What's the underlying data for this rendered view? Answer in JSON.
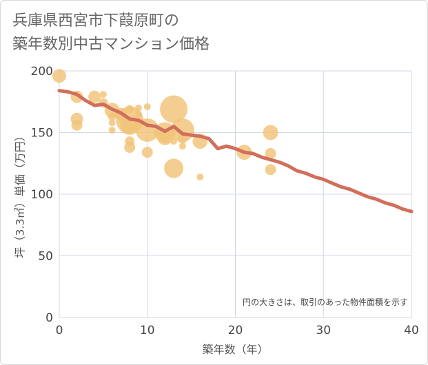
{
  "title_lines": [
    "兵庫県西宮市下葭原町の",
    "築年数別中古マンション価格"
  ],
  "chart_data": {
    "type": "scatter",
    "title": "兵庫県西宮市下葭原町の築年数別中古マンション価格",
    "xlabel": "築年数（年）",
    "ylabel": "坪（3.3㎡）単価（万円）",
    "xlim": [
      0,
      40
    ],
    "ylim": [
      0,
      200
    ],
    "x_ticks": [
      0,
      10,
      20,
      30,
      40
    ],
    "y_ticks": [
      0,
      50,
      100,
      150,
      200
    ],
    "grid": true,
    "note": "円の大きさは、取引のあった物件面積を示す",
    "colors": {
      "bubble": "#f2c377",
      "trend": "#d26e5c",
      "grid": "#d0d8e4"
    },
    "bubbles": [
      {
        "x": 0,
        "y": 196,
        "size": 10
      },
      {
        "x": 2,
        "y": 179,
        "size": 9
      },
      {
        "x": 2,
        "y": 161,
        "size": 9
      },
      {
        "x": 2,
        "y": 156,
        "size": 8
      },
      {
        "x": 4,
        "y": 179,
        "size": 9
      },
      {
        "x": 5,
        "y": 181,
        "size": 5
      },
      {
        "x": 5,
        "y": 174,
        "size": 7
      },
      {
        "x": 6,
        "y": 168,
        "size": 11
      },
      {
        "x": 6,
        "y": 163,
        "size": 6
      },
      {
        "x": 6,
        "y": 158,
        "size": 5
      },
      {
        "x": 6,
        "y": 152,
        "size": 5
      },
      {
        "x": 7,
        "y": 165,
        "size": 9
      },
      {
        "x": 8,
        "y": 169,
        "size": 6
      },
      {
        "x": 8,
        "y": 160,
        "size": 20
      },
      {
        "x": 8,
        "y": 156,
        "size": 14
      },
      {
        "x": 8,
        "y": 143,
        "size": 7
      },
      {
        "x": 8,
        "y": 138,
        "size": 8
      },
      {
        "x": 9,
        "y": 170,
        "size": 5
      },
      {
        "x": 9,
        "y": 165,
        "size": 5
      },
      {
        "x": 9,
        "y": 158,
        "size": 5
      },
      {
        "x": 10,
        "y": 171,
        "size": 5
      },
      {
        "x": 10,
        "y": 152,
        "size": 17
      },
      {
        "x": 10,
        "y": 134,
        "size": 8
      },
      {
        "x": 12,
        "y": 150,
        "size": 15
      },
      {
        "x": 12,
        "y": 146,
        "size": 11
      },
      {
        "x": 13,
        "y": 169,
        "size": 20
      },
      {
        "x": 13,
        "y": 143,
        "size": 5
      },
      {
        "x": 13,
        "y": 121,
        "size": 14
      },
      {
        "x": 14,
        "y": 152,
        "size": 17
      },
      {
        "x": 14,
        "y": 145,
        "size": 7
      },
      {
        "x": 14,
        "y": 139,
        "size": 5
      },
      {
        "x": 16,
        "y": 143,
        "size": 11
      },
      {
        "x": 16,
        "y": 114,
        "size": 5
      },
      {
        "x": 21,
        "y": 134,
        "size": 11
      },
      {
        "x": 24,
        "y": 150,
        "size": 11
      },
      {
        "x": 24,
        "y": 133,
        "size": 8
      },
      {
        "x": 24,
        "y": 120,
        "size": 8
      }
    ],
    "series": [
      {
        "values": [
          [
            0,
            184
          ],
          [
            1,
            183
          ],
          [
            2,
            181
          ],
          [
            3,
            176
          ],
          [
            4,
            172
          ],
          [
            5,
            173
          ],
          [
            6,
            169
          ],
          [
            7,
            166
          ],
          [
            8,
            161
          ],
          [
            9,
            160
          ],
          [
            10,
            156
          ],
          [
            11,
            155
          ],
          [
            12,
            151
          ],
          [
            13,
            155
          ],
          [
            14,
            149
          ],
          [
            15,
            148
          ],
          [
            16,
            147
          ],
          [
            17,
            145
          ],
          [
            18,
            137
          ],
          [
            19,
            139
          ],
          [
            20,
            137
          ],
          [
            21,
            134
          ],
          [
            22,
            133
          ],
          [
            23,
            130
          ],
          [
            24,
            128
          ],
          [
            25,
            126
          ],
          [
            26,
            123
          ],
          [
            27,
            119
          ],
          [
            28,
            117
          ],
          [
            29,
            114
          ],
          [
            30,
            112
          ],
          [
            31,
            109
          ],
          [
            32,
            106
          ],
          [
            33,
            104
          ],
          [
            34,
            101
          ],
          [
            35,
            98
          ],
          [
            36,
            96
          ],
          [
            37,
            93
          ],
          [
            38,
            91
          ],
          [
            39,
            88
          ],
          [
            40,
            86
          ]
        ]
      }
    ]
  }
}
